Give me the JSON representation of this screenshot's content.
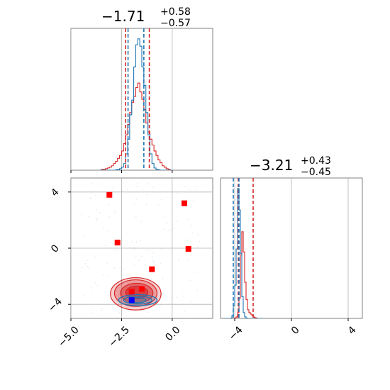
{
  "chart_data": {
    "type": "corner",
    "colors": {
      "blue": "#1f77b4",
      "red": "#d62728",
      "grid": "#b0b0b0",
      "marker_red": "#ff0000",
      "marker_blue": "#0000ff"
    },
    "x_param": {
      "title": {
        "main": "−1.71",
        "sup": "+0.58",
        "sub": "−0.57"
      },
      "range": [
        -5.0,
        2.0
      ],
      "ticks": [
        -5.0,
        -2.5,
        0.0
      ],
      "tick_labels": [
        "−5.0",
        "−2.5",
        "0.0"
      ],
      "quantiles": {
        "blue": [
          -2.18,
          -1.4
        ],
        "red": [
          -2.3,
          -1.13
        ]
      }
    },
    "y_param": {
      "title": {
        "main": "−3.21",
        "sup": "+0.43",
        "sub": "−0.45"
      },
      "range": [
        -5.0,
        5.0
      ],
      "ticks": [
        -4,
        0,
        4
      ],
      "tick_labels": [
        "−4",
        "0",
        "4"
      ],
      "quantiles": {
        "blue": [
          -4.1,
          -3.7
        ],
        "red": [
          -3.75,
          -2.7
        ]
      }
    },
    "hist_x": {
      "bins": [
        -3.6,
        -3.5,
        -3.4,
        -3.3,
        -3.2,
        -3.1,
        -3.0,
        -2.9,
        -2.8,
        -2.7,
        -2.6,
        -2.5,
        -2.4,
        -2.3,
        -2.2,
        -2.1,
        -2.0,
        -1.9,
        -1.8,
        -1.7,
        -1.6,
        -1.5,
        -1.4,
        -1.3,
        -1.2,
        -1.1,
        -1.0,
        -0.9,
        -0.8,
        -0.7,
        -0.6,
        -0.5,
        -0.4,
        -0.3,
        -0.2,
        -0.1,
        0.0
      ],
      "blue": [
        0,
        0,
        0,
        0,
        0,
        0,
        0,
        0,
        0.5,
        1,
        2,
        4,
        9,
        22,
        42,
        75,
        95,
        140,
        170,
        178,
        168,
        140,
        115,
        78,
        48,
        22,
        9,
        3,
        1,
        0.5,
        0,
        0,
        0,
        0,
        0,
        0
      ],
      "red": [
        0,
        1,
        1,
        2,
        3,
        4,
        6,
        9,
        12,
        16,
        20,
        26,
        36,
        48,
        62,
        78,
        92,
        100,
        112,
        118,
        106,
        96,
        82,
        64,
        52,
        42,
        34,
        26,
        20,
        14,
        10,
        6,
        4,
        2,
        1,
        0
      ]
    },
    "hist_y": {
      "bins": [
        -4.8,
        -4.7,
        -4.6,
        -4.5,
        -4.4,
        -4.3,
        -4.2,
        -4.1,
        -4.0,
        -3.9,
        -3.8,
        -3.7,
        -3.6,
        -3.5,
        -3.4,
        -3.3,
        -3.2,
        -3.1,
        -3.0,
        -2.9,
        -2.8,
        -2.7,
        -2.6,
        -2.5,
        -2.4,
        -2.3,
        -2.2,
        -2.1,
        -2.0
      ],
      "blue": [
        0,
        0,
        0,
        0,
        0,
        0.5,
        4,
        18,
        46,
        96,
        180,
        150,
        90,
        30,
        8,
        2,
        0.5,
        0,
        0,
        0,
        0,
        0,
        0,
        0,
        0,
        0,
        0,
        0
      ],
      "red": [
        0,
        0,
        0,
        0,
        0,
        0,
        0,
        0,
        0.5,
        2,
        8,
        28,
        88,
        120,
        92,
        50,
        26,
        12,
        8,
        6,
        4,
        2,
        1,
        0.5,
        0,
        0,
        0,
        0
      ]
    },
    "markers_red": [
      [
        -3.1,
        3.8
      ],
      [
        -2.7,
        0.4
      ],
      [
        -1.0,
        -1.5
      ],
      [
        -2.0,
        -3.1
      ],
      [
        -1.5,
        -2.9
      ],
      [
        0.6,
        3.2
      ],
      [
        0.8,
        -0.05
      ]
    ],
    "markers_blue": [
      [
        -2.0,
        -3.7
      ]
    ],
    "contour_red": [
      {
        "cx": -1.8,
        "cy": -3.25,
        "rx": 1.25,
        "ry": 1.15,
        "alpha": 0.22
      },
      {
        "cx": -1.8,
        "cy": -3.2,
        "rx": 1.05,
        "ry": 0.95,
        "alpha": 0.3
      },
      {
        "cx": -1.75,
        "cy": -3.2,
        "rx": 0.8,
        "ry": 0.7,
        "alpha": 0.45
      },
      {
        "cx": -1.75,
        "cy": -3.15,
        "rx": 0.55,
        "ry": 0.45,
        "alpha": 0.65
      }
    ],
    "contour_blue": [
      {
        "cx": -1.7,
        "cy": -3.7,
        "rx": 0.95,
        "ry": 0.4
      },
      {
        "cx": -1.7,
        "cy": -3.7,
        "rx": 0.7,
        "ry": 0.28
      },
      {
        "cx": -1.7,
        "cy": -3.7,
        "rx": 0.4,
        "ry": 0.18
      }
    ]
  }
}
